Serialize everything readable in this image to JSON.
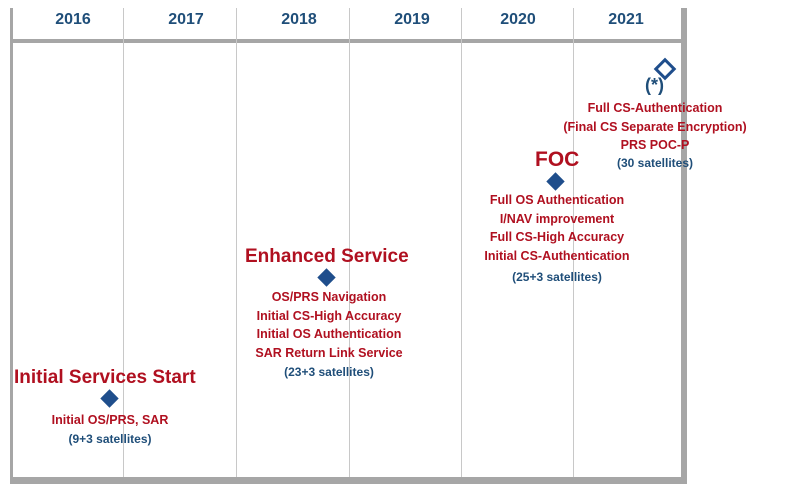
{
  "years": [
    "2016",
    "2017",
    "2018",
    "2019",
    "2020",
    "2021"
  ],
  "milestones": {
    "initial": {
      "title": "Initial Services Start",
      "items": [
        "Initial OS/PRS, SAR"
      ],
      "satellites": "(9+3 satellites)"
    },
    "enhanced": {
      "title": "Enhanced Service",
      "items": [
        "OS/PRS Navigation",
        "Initial CS-High Accuracy",
        "Initial OS Authentication",
        "SAR Return Link Service"
      ],
      "satellites": "(23+3 satellites)"
    },
    "foc": {
      "title": "FOC",
      "items": [
        "Full OS Authentication",
        "I/NAV improvement",
        "Full CS-High Accuracy",
        "Initial CS-Authentication"
      ],
      "satellites": "(25+3 satellites)"
    },
    "future": {
      "marker": "(*)",
      "items": [
        "Full CS-Authentication",
        "(Final CS Separate Encryption)",
        "PRS POC-P"
      ],
      "satellites": "(30 satellites)"
    }
  },
  "colors": {
    "title_red": "#b01020",
    "navy": "#1f4e79",
    "marker": "#1f4e8c",
    "frame_gray": "#a6a6a6"
  }
}
